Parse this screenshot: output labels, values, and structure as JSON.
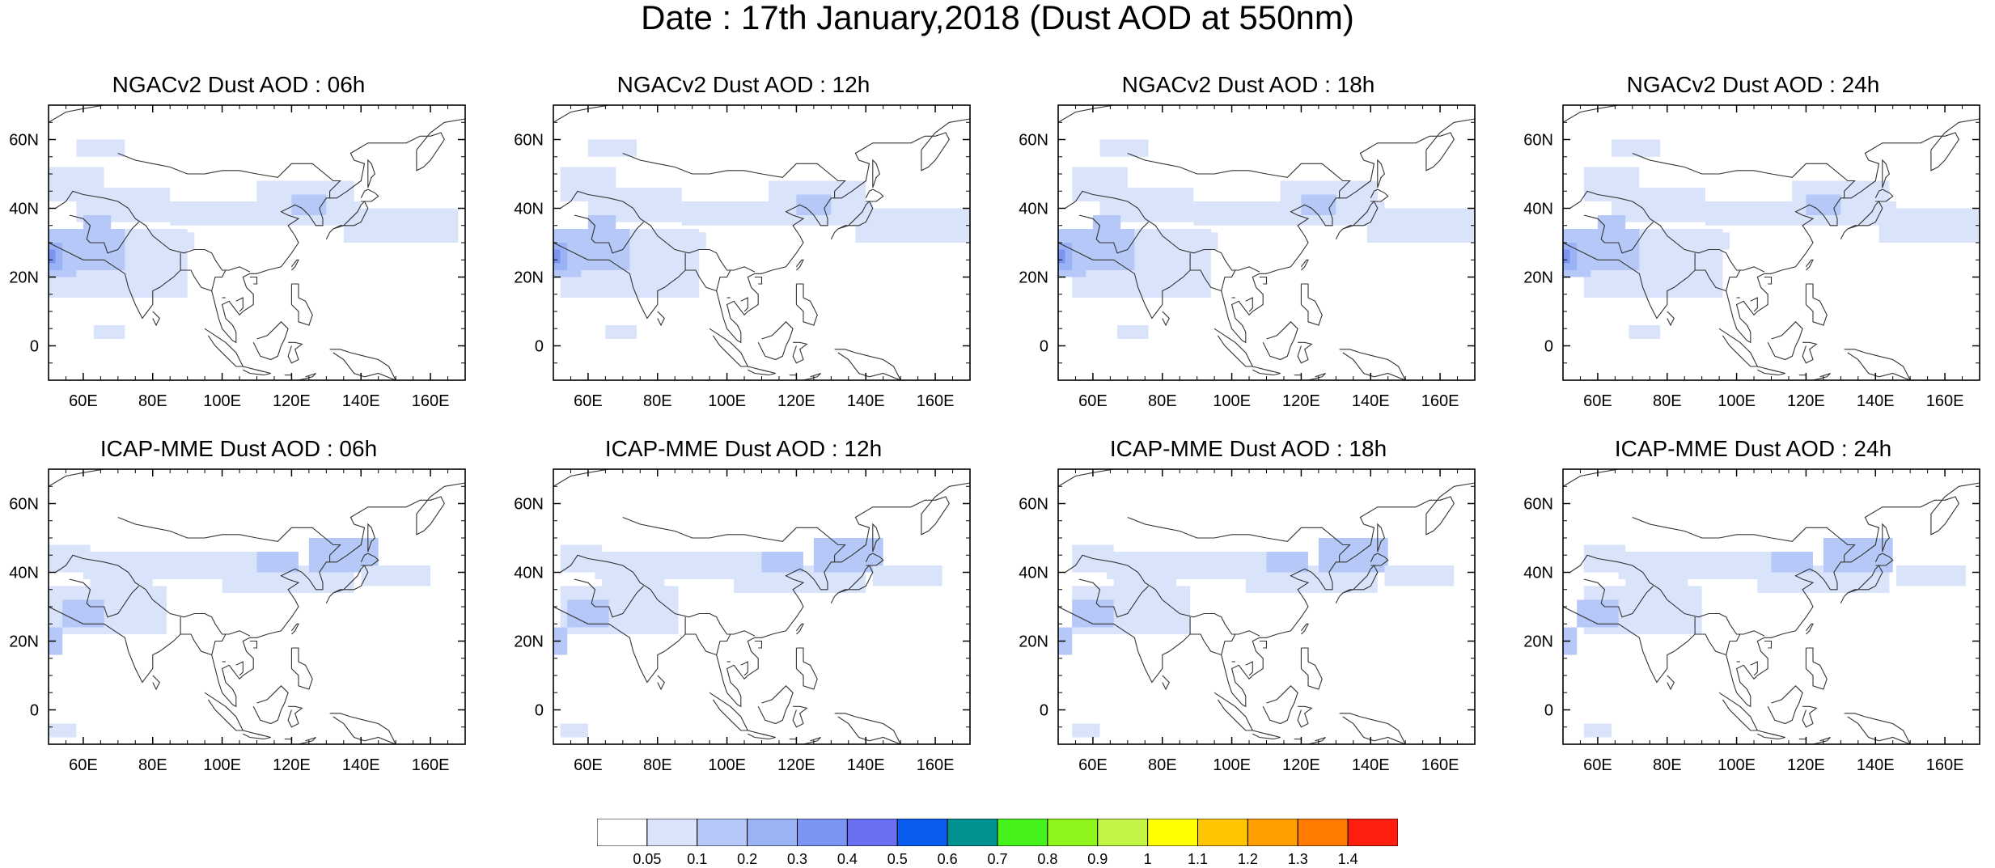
{
  "title": "Date : 17th January,2018 (Dust AOD at 550nm)",
  "panels": [
    {
      "title": "NGACv2 Dust AOD : 06h",
      "model": "NGACv2",
      "hour": 6
    },
    {
      "title": "NGACv2 Dust AOD : 12h",
      "model": "NGACv2",
      "hour": 12
    },
    {
      "title": "NGACv2 Dust AOD : 18h",
      "model": "NGACv2",
      "hour": 18
    },
    {
      "title": "NGACv2 Dust AOD : 24h",
      "model": "NGACv2",
      "hour": 24
    },
    {
      "title": "ICAP-MME Dust AOD : 06h",
      "model": "ICAP-MME",
      "hour": 6
    },
    {
      "title": "ICAP-MME Dust AOD : 12h",
      "model": "ICAP-MME",
      "hour": 12
    },
    {
      "title": "ICAP-MME Dust AOD : 18h",
      "model": "ICAP-MME",
      "hour": 18
    },
    {
      "title": "ICAP-MME Dust AOD : 24h",
      "model": "ICAP-MME",
      "hour": 24
    }
  ],
  "axes": {
    "lon_range": [
      50,
      170
    ],
    "lat_range": [
      -10,
      70
    ],
    "x_ticks": [
      "60E",
      "80E",
      "100E",
      "120E",
      "140E",
      "160E"
    ],
    "y_ticks": [
      "0",
      "20N",
      "40N",
      "60N"
    ]
  },
  "colorbar": {
    "levels": [
      "0.05",
      "0.1",
      "0.2",
      "0.3",
      "0.4",
      "0.5",
      "0.6",
      "0.7",
      "0.8",
      "0.9",
      "1",
      "1.1",
      "1.2",
      "1.3",
      "1.4"
    ],
    "colors": [
      "#ffffff",
      "#d9e4fb",
      "#b5c8f8",
      "#9ab3f5",
      "#7b95f2",
      "#6a6ef0",
      "#0a5cf0",
      "#009190",
      "#46f21b",
      "#90f51c",
      "#c3f546",
      "#ffff00",
      "#ffc400",
      "#ff9e00",
      "#ff7c00",
      "#ff1f10"
    ]
  }
}
